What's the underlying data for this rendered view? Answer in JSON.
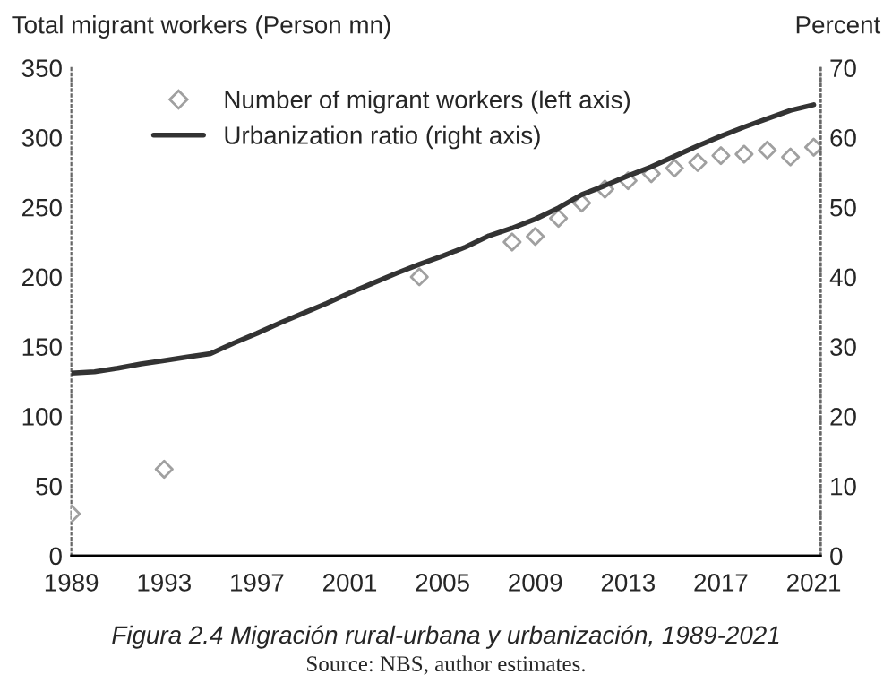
{
  "chart_data": {
    "type": "line",
    "title": "Figura 2.4 Migración rural-urbana y urbanización, 1989-2021",
    "ylabel": "Total migrant workers (Person mn)",
    "y2label": "Percent",
    "annotations": [
      "Source: NBS, author estimates."
    ],
    "series": [
      {
        "name": "Number of migrant workers (left axis)",
        "type": "scatter",
        "marker": "diamond",
        "color": "#a0a0a0",
        "x": [
          1989,
          1993,
          2004,
          2008,
          2009,
          2010,
          2011,
          2012,
          2013,
          2014,
          2015,
          2016,
          2017,
          2018,
          2019,
          2020,
          2021
        ],
        "values": [
          30,
          62,
          200,
          225,
          229,
          242,
          253,
          263,
          269,
          274,
          278,
          282,
          287,
          288,
          291,
          286,
          293
        ]
      },
      {
        "name": "Urbanization ratio (right axis)",
        "axis": "y2",
        "color": "#333333",
        "line_style": "solid",
        "x": [
          1989,
          1990,
          1991,
          1992,
          1993,
          1994,
          1995,
          1996,
          1997,
          1998,
          1999,
          2000,
          2001,
          2002,
          2003,
          2004,
          2005,
          2006,
          2007,
          2008,
          2009,
          2010,
          2011,
          2012,
          2013,
          2014,
          2015,
          2016,
          2017,
          2018,
          2019,
          2020,
          2021
        ],
        "values": [
          26.2,
          26.4,
          26.9,
          27.5,
          28.0,
          28.5,
          29.0,
          30.5,
          31.9,
          33.4,
          34.8,
          36.2,
          37.7,
          39.1,
          40.5,
          41.8,
          43.0,
          44.3,
          45.9,
          47.0,
          48.3,
          49.9,
          51.8,
          53.1,
          54.5,
          55.8,
          57.3,
          58.8,
          60.2,
          61.5,
          62.7,
          63.9,
          64.7
        ]
      }
    ],
    "xlim": [
      1989,
      2021.3
    ],
    "xticks": [
      1989,
      1993,
      1997,
      2001,
      2005,
      2009,
      2013,
      2017,
      2021
    ],
    "ylim": [
      0,
      350
    ],
    "yticks": [
      0,
      50,
      100,
      150,
      200,
      250,
      300,
      350
    ],
    "y2lim": [
      0,
      70
    ],
    "y2ticks": [
      0,
      10,
      20,
      30,
      40,
      50,
      60,
      70
    ],
    "grid": false,
    "legend": "top left"
  }
}
